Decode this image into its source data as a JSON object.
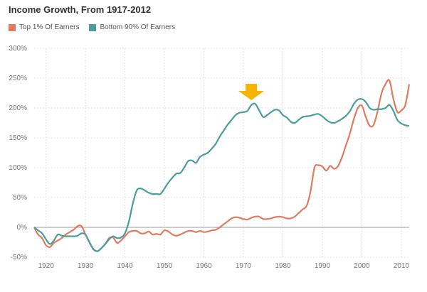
{
  "chart_data": {
    "type": "line",
    "title": "Income Growth, From 1917-2012",
    "xlabel": "",
    "ylabel": "",
    "xlim": [
      1917,
      2012
    ],
    "ylim": [
      -50,
      300
    ],
    "y_ticks": [
      "300%",
      "250%",
      "200%",
      "150%",
      "100%",
      "50%",
      "0%",
      "-50%"
    ],
    "y_tick_values": [
      300,
      250,
      200,
      150,
      100,
      50,
      0,
      -50
    ],
    "x_ticks": [
      1920,
      1930,
      1940,
      1950,
      1960,
      1970,
      1980,
      1990,
      2000,
      2010
    ],
    "grid": true,
    "legend": "top-left",
    "annotation": {
      "type": "arrow",
      "year": 1972,
      "color": "#F5B400"
    },
    "x_start": 1917,
    "series": [
      {
        "name": "Top 1% Of Earners",
        "color": "#E07B62",
        "values": [
          0,
          -12,
          -18,
          -30,
          -33,
          -26,
          -22,
          -18,
          -12,
          -8,
          -4,
          2,
          2,
          -12,
          -25,
          -37,
          -40,
          -35,
          -28,
          -18,
          -17,
          -26,
          -22,
          -15,
          -8,
          -6,
          -6,
          -10,
          -10,
          -7,
          -12,
          -11,
          -12,
          -5,
          -7,
          -12,
          -14,
          -12,
          -9,
          -6,
          -6,
          -8,
          -6,
          -8,
          -7,
          -5,
          -4,
          0,
          5,
          10,
          15,
          17,
          16,
          14,
          13,
          16,
          18,
          18,
          14,
          14,
          15,
          17,
          18,
          17,
          15,
          15,
          18,
          24,
          30,
          36,
          60,
          100,
          104,
          102,
          95,
          103,
          98,
          103,
          118,
          138,
          158,
          182,
          200,
          204,
          185,
          170,
          172,
          195,
          225,
          240,
          246,
          215,
          193,
          196,
          205,
          240
        ]
      },
      {
        "name": "Bottom 90% Of Earners",
        "color": "#4A9E9B",
        "values": [
          0,
          -5,
          -10,
          -20,
          -28,
          -22,
          -12,
          -14,
          -15,
          -15,
          -15,
          -14,
          -10,
          -12,
          -25,
          -36,
          -40,
          -35,
          -28,
          -20,
          -15,
          -18,
          -17,
          -10,
          10,
          40,
          62,
          65,
          62,
          58,
          56,
          56,
          56,
          65,
          75,
          83,
          90,
          91,
          100,
          111,
          112,
          108,
          118,
          122,
          125,
          132,
          140,
          152,
          162,
          172,
          180,
          188,
          192,
          193,
          195,
          205,
          207,
          196,
          185,
          188,
          193,
          197,
          196,
          188,
          184,
          177,
          175,
          180,
          185,
          186,
          187,
          189,
          190,
          186,
          180,
          176,
          175,
          178,
          182,
          187,
          195,
          207,
          214,
          215,
          210,
          200,
          197,
          198,
          198,
          200,
          205,
          195,
          180,
          174,
          171,
          170
        ]
      }
    ]
  }
}
